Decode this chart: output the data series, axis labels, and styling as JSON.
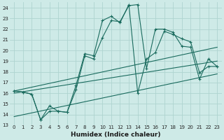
{
  "xlabel": "Humidex (Indice chaleur)",
  "bg_color": "#ceeae7",
  "grid_color": "#aed4d0",
  "line_color": "#1a6b5e",
  "xlim": [
    -0.5,
    23.5
  ],
  "ylim": [
    13,
    24.5
  ],
  "yticks": [
    13,
    14,
    15,
    16,
    17,
    18,
    19,
    20,
    21,
    22,
    23,
    24
  ],
  "xticks": [
    0,
    1,
    2,
    3,
    4,
    5,
    6,
    7,
    8,
    9,
    10,
    11,
    12,
    13,
    14,
    15,
    16,
    17,
    18,
    19,
    20,
    21,
    22,
    23
  ],
  "series1_x": [
    0,
    1,
    2,
    3,
    4,
    5,
    6,
    7,
    8,
    9,
    10,
    11,
    12,
    13,
    14,
    15,
    16,
    17,
    18,
    19,
    20,
    21,
    22,
    23
  ],
  "series1_y": [
    16.2,
    16.1,
    15.9,
    13.5,
    14.8,
    14.3,
    14.2,
    16.3,
    19.5,
    19.2,
    21.2,
    22.8,
    22.7,
    24.2,
    24.3,
    18.3,
    22.0,
    22.0,
    21.7,
    20.4,
    20.3,
    17.3,
    19.2,
    18.5
  ],
  "series2_x": [
    0,
    1,
    2,
    3,
    4,
    5,
    6,
    7,
    8,
    9,
    10,
    11,
    12,
    13,
    14,
    15,
    16,
    17,
    18,
    19,
    20,
    21,
    22,
    23
  ],
  "series2_y": [
    16.2,
    16.1,
    15.9,
    13.5,
    14.3,
    14.3,
    14.2,
    16.7,
    19.7,
    19.5,
    22.8,
    23.2,
    22.6,
    24.3,
    16.0,
    19.2,
    19.8,
    21.8,
    21.5,
    21.1,
    20.8,
    17.9,
    18.5,
    18.5
  ],
  "trend1_x": [
    0,
    23
  ],
  "trend1_y": [
    16.2,
    20.3
  ],
  "trend2_x": [
    0,
    23
  ],
  "trend2_y": [
    16.0,
    19.0
  ],
  "trend3_x": [
    0,
    23
  ],
  "trend3_y": [
    13.8,
    17.8
  ]
}
